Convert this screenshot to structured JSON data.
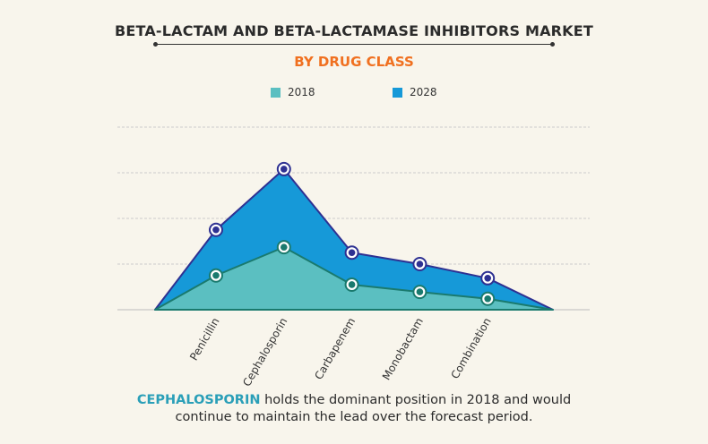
{
  "chart_data": {
    "type": "area",
    "title": "BETA-LACTAM AND BETA-LACTAMASE INHIBITORS MARKET",
    "subtitle": "BY DRUG CLASS",
    "categories": [
      "Penicillin",
      "Cephalosporin",
      "Carbapenem",
      "Monobactam",
      "Combination"
    ],
    "series": [
      {
        "name": "2018",
        "color": "#5bbfc1",
        "line": "#1a7a6e",
        "values": [
          0.75,
          1.37,
          0.55,
          0.39,
          0.24
        ]
      },
      {
        "name": "2028",
        "color": "#1699d8",
        "line": "#2e3192",
        "values": [
          1.75,
          3.08,
          1.25,
          1.0,
          0.69
        ]
      }
    ],
    "ylim": [
      0,
      4
    ],
    "grid": true,
    "legend": "top-center",
    "xlabel": "",
    "ylabel": ""
  },
  "footer": {
    "highlight": "CEPHALOSPORIN",
    "text1": " holds the dominant position in 2018 and would",
    "text2": "continue to maintain the lead over the forecast period."
  }
}
